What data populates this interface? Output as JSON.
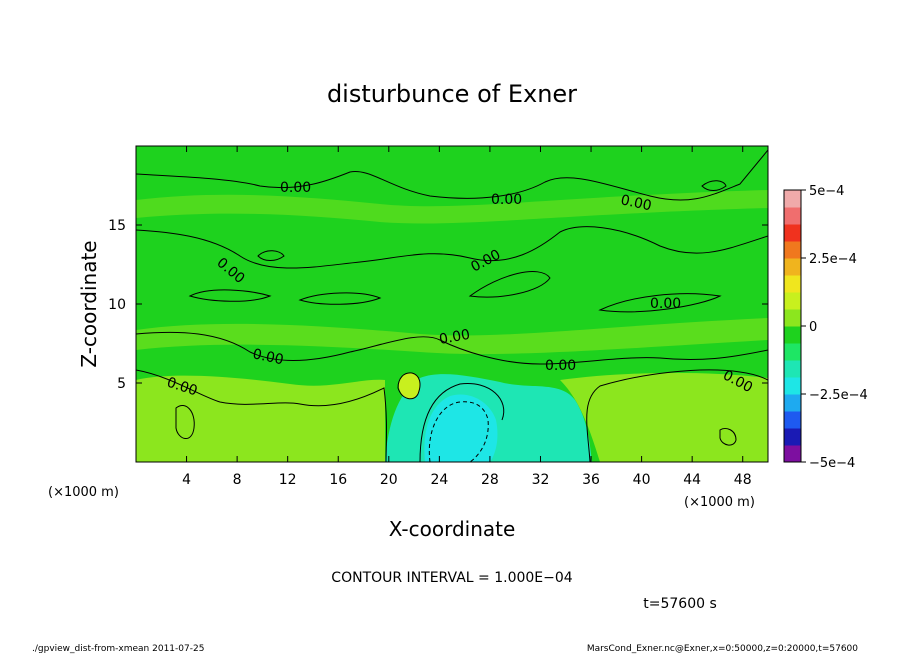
{
  "chart_data": {
    "type": "heatmap",
    "subtype": "filled-contour",
    "title": "disturbunce of Exner",
    "xlabel": "X-coordinate",
    "ylabel": "Z-coordinate",
    "x_unit": "(×1000 m)",
    "y_unit": "(×1000 m)",
    "xlim": [
      0,
      50
    ],
    "ylim": [
      0,
      20
    ],
    "x_ticks": [
      4,
      8,
      12,
      16,
      20,
      24,
      28,
      32,
      36,
      40,
      44,
      48
    ],
    "y_ticks": [
      5,
      10,
      15
    ],
    "colorbar": {
      "range": [
        -0.0005,
        0.0005
      ],
      "tick_labels": [
        "5e−4",
        "2.5e−4",
        "0",
        "−2.5e−4",
        "−5e−4"
      ],
      "tick_values": [
        0.0005,
        0.00025,
        0,
        -0.00025,
        -0.0005
      ],
      "colors": [
        "#7d0fa0",
        "#1a1ab4",
        "#1e5af0",
        "#1eaaf0",
        "#1ee6e6",
        "#1ee6b4",
        "#1ee664",
        "#1ed21e",
        "#8ce61e",
        "#c8f01e",
        "#f0e61e",
        "#f0b41e",
        "#f0781e",
        "#f0321e",
        "#f06e6e",
        "#f0aaaa"
      ]
    },
    "contour_interval": "CONTOUR INTERVAL = 1.000E−04",
    "contour_labels": [
      "0.00",
      "0.00",
      "0.00",
      "0.00",
      "0.00",
      "0.00",
      "0.00",
      "0.00",
      "0.00",
      "0.00",
      "0.00"
    ],
    "field_summary": {
      "dominant_value": 0,
      "min_region": {
        "x": 25,
        "z": 2.5,
        "approx_value": -0.00015
      },
      "max_region": {
        "x": 21.5,
        "z": 6,
        "approx_value": 0.0001
      }
    },
    "time_label": "t=57600 s"
  },
  "footer": {
    "left": "./gpview_dist-from-xmean  2011-07-25",
    "right": "MarsCond_Exner.nc@Exner,x=0:50000,z=0:20000,t=57600"
  }
}
